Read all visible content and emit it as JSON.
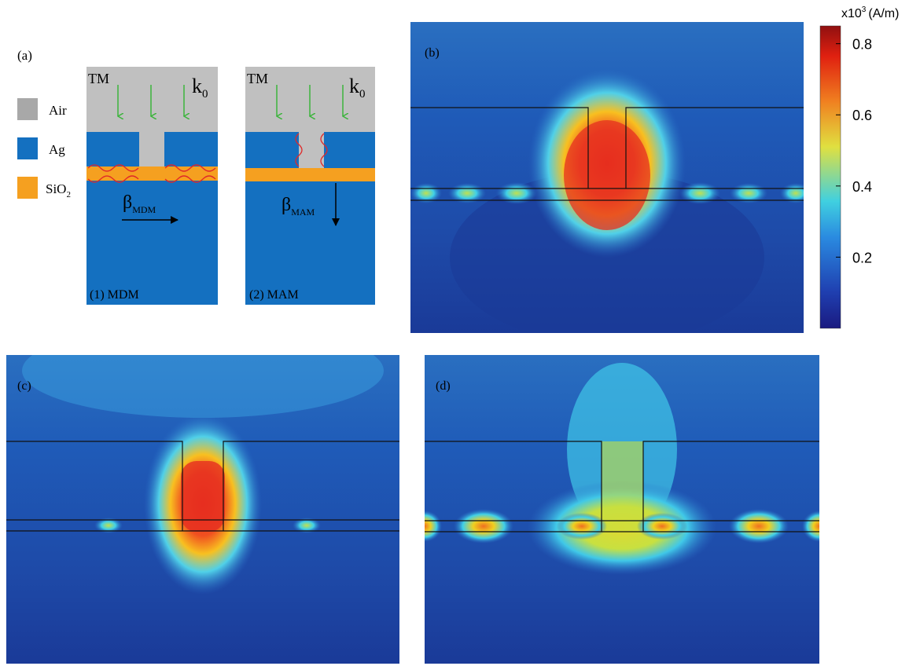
{
  "panel_a": {
    "label": "(a)",
    "legend": [
      {
        "text": "Air"
      },
      {
        "text": "Ag"
      },
      {
        "text": "SiO",
        "sub": "2"
      }
    ],
    "left": {
      "polarization": "TM",
      "k": "k",
      "k_sub": "0",
      "beta": "β",
      "beta_sub": "MDM",
      "caption": "(1) MDM"
    },
    "right": {
      "polarization": "TM",
      "k": "k",
      "k_sub": "0",
      "beta": "β",
      "beta_sub": "MAM",
      "caption": "(2) MAM"
    }
  },
  "panel_b": {
    "label": "(b)"
  },
  "panel_c": {
    "label": "(c)"
  },
  "panel_d": {
    "label": "(d)"
  },
  "colorbar": {
    "unit_base": "x10",
    "unit_exp": "3",
    "unit": "(A/m)",
    "lim": [
      0,
      0.85
    ],
    "ticks": [
      0.2,
      0.4,
      0.6,
      0.8
    ]
  }
}
